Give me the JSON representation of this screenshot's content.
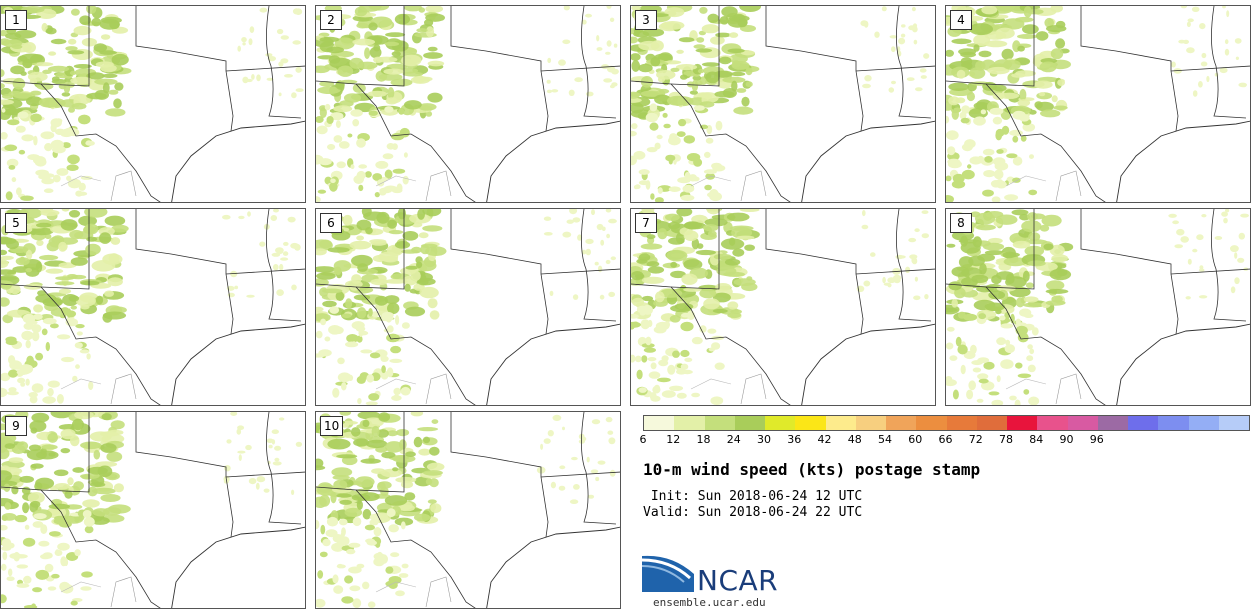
{
  "panels": [
    {
      "label": "1"
    },
    {
      "label": "2"
    },
    {
      "label": "3"
    },
    {
      "label": "4"
    },
    {
      "label": "5"
    },
    {
      "label": "6"
    },
    {
      "label": "7"
    },
    {
      "label": "8"
    },
    {
      "label": "9"
    },
    {
      "label": "10"
    }
  ],
  "colorbar": {
    "colors": [
      "#f6f9dc",
      "#e3f0a8",
      "#c4df7c",
      "#a9cd5a",
      "#e0ea2a",
      "#fbe617",
      "#fdeb8c",
      "#f7cf7f",
      "#f0a45a",
      "#ec8e3f",
      "#e77a3a",
      "#e06d3b",
      "#e8143c",
      "#e8528c",
      "#d85aa2",
      "#9c6aa4",
      "#6e6eeb",
      "#7d8ef0",
      "#94aef5",
      "#b6ccf8"
    ],
    "ticks": [
      "6",
      "12",
      "18",
      "24",
      "30",
      "36",
      "42",
      "48",
      "54",
      "60",
      "66",
      "72",
      "78",
      "84",
      "90",
      "96"
    ]
  },
  "title": "10-m wind speed (kts) postage stamp",
  "init_line": " Init: Sun 2018-06-24 12 UTC",
  "valid_line": "Valid: Sun 2018-06-24 22 UTC",
  "logo_text": "NCAR",
  "logo_url": "ensemble.ucar.edu"
}
